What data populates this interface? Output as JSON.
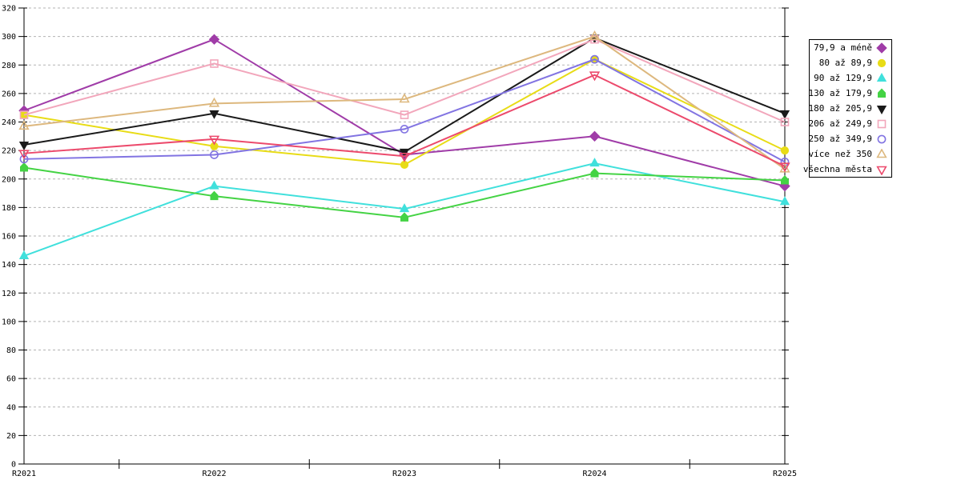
{
  "chart_data": {
    "type": "line",
    "title": "",
    "xlabel": "",
    "ylabel": "",
    "categories": [
      "R2021",
      "R2022",
      "R2023",
      "R2024",
      "R2025"
    ],
    "ylim": [
      0,
      320
    ],
    "y_tick_step": 20,
    "y_ticks": [
      0,
      20,
      40,
      60,
      80,
      100,
      120,
      140,
      160,
      180,
      200,
      220,
      240,
      260,
      280,
      300,
      320
    ],
    "grid": "horizontal-dashed",
    "legend_position": "right-outside",
    "series": [
      {
        "name": "79,9 a méně",
        "color": "#A03CA8",
        "marker": "diamond",
        "marker_fill": "solid",
        "values": [
          248,
          298,
          217,
          230,
          195
        ]
      },
      {
        "name": "80 až 89,9",
        "color": "#E8DC16",
        "marker": "circle",
        "marker_fill": "solid",
        "values": [
          245,
          223,
          210,
          284,
          220
        ]
      },
      {
        "name": "90 až 129,9",
        "color": "#40E0DC",
        "marker": "triangle-up",
        "marker_fill": "solid",
        "values": [
          146,
          195,
          179,
          211,
          184
        ]
      },
      {
        "name": "130 až 179,9",
        "color": "#44D344",
        "marker": "pentagon",
        "marker_fill": "solid",
        "values": [
          208,
          188,
          173,
          204,
          199
        ]
      },
      {
        "name": "180 až 205,9",
        "color": "#1A1A1A",
        "marker": "triangle-down",
        "marker_fill": "solid",
        "values": [
          224,
          246,
          219,
          299,
          246
        ]
      },
      {
        "name": "206 až 249,9",
        "color": "#F2A6BB",
        "marker": "square",
        "marker_fill": "open",
        "values": [
          245,
          281,
          245,
          298,
          240
        ]
      },
      {
        "name": "250 až 349,9",
        "color": "#8274E2",
        "marker": "circle",
        "marker_fill": "open",
        "values": [
          214,
          217,
          235,
          284,
          212
        ]
      },
      {
        "name": "více než 350",
        "color": "#DDB87E",
        "marker": "triangle-up",
        "marker_fill": "open",
        "values": [
          237,
          253,
          256,
          300,
          207
        ]
      },
      {
        "name": "všechna města",
        "color": "#EC4A6C",
        "marker": "triangle-down",
        "marker_fill": "open",
        "values": [
          218,
          228,
          216,
          273,
          209
        ]
      }
    ]
  },
  "colors": {
    "background": "#FFFFFF",
    "axis": "#000000",
    "gridline": "#B3B3B3",
    "tick_label": "#000000"
  }
}
